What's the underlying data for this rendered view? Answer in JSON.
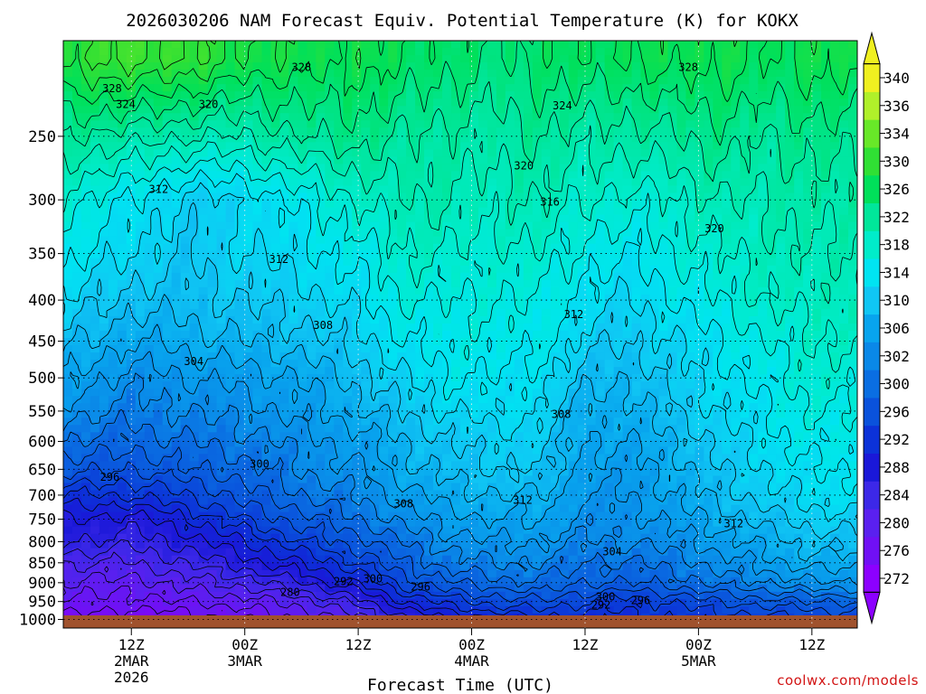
{
  "chart_data": {
    "type": "heatmap",
    "title": "2026030206 NAM Forecast Equiv. Potential Temperature (K) for KOKX",
    "xlabel": "Forecast Time (UTC)",
    "ylabel": "",
    "y_scale": "log-pressure",
    "y_unit": "hPa",
    "ylim": [
      1025,
      190
    ],
    "y_ticks": [
      250,
      300,
      350,
      400,
      450,
      500,
      550,
      600,
      650,
      700,
      750,
      800,
      850,
      900,
      950,
      1000
    ],
    "x_range_hours": [
      6,
      76
    ],
    "x_ticks": [
      {
        "hour": 12,
        "lines": [
          "12Z",
          "2MAR",
          "2026"
        ]
      },
      {
        "hour": 22,
        "lines": [
          "00Z",
          "3MAR"
        ]
      },
      {
        "hour": 32,
        "lines": [
          "12Z"
        ]
      },
      {
        "hour": 42,
        "lines": [
          "00Z",
          "4MAR"
        ]
      },
      {
        "hour": 52,
        "lines": [
          "12Z"
        ]
      },
      {
        "hour": 62,
        "lines": [
          "00Z",
          "5MAR"
        ]
      },
      {
        "hour": 72,
        "lines": [
          "12Z"
        ]
      }
    ],
    "grid": true,
    "colorbar": {
      "labels": [
        272,
        276,
        280,
        284,
        288,
        292,
        296,
        300,
        302,
        306,
        310,
        314,
        318,
        322,
        326,
        330,
        334,
        336,
        340
      ],
      "colors": [
        "#8c00ff",
        "#7010f5",
        "#5a20ef",
        "#3c28e8",
        "#1a18d8",
        "#0c32d8",
        "#0a52dc",
        "#0a6ee2",
        "#0a88e8",
        "#08a4ee",
        "#10c6f4",
        "#00e4f2",
        "#00ecca",
        "#00e69a",
        "#00e05a",
        "#30e034",
        "#68e828",
        "#b0f02a",
        "#f0f020"
      ]
    },
    "field_anchors": {
      "columns_hours": [
        6,
        12,
        17,
        22,
        27,
        32,
        36,
        40,
        44,
        48,
        52,
        56,
        60,
        64,
        68,
        72,
        76
      ],
      "rows_hPa": [
        200,
        250,
        300,
        350,
        400,
        450,
        500,
        550,
        600,
        650,
        700,
        750,
        800,
        850,
        900,
        950,
        1000
      ],
      "values_K": [
        [
          329,
          331,
          330,
          328,
          327,
          327,
          326,
          325,
          324,
          325,
          326,
          326,
          327,
          327,
          326,
          327,
          327
        ],
        [
          322,
          321,
          320,
          320,
          322,
          323,
          322,
          321,
          321,
          322,
          321,
          321,
          322,
          323,
          322,
          323,
          323
        ],
        [
          317,
          314,
          311,
          312,
          315,
          318,
          320,
          320,
          319,
          320,
          318,
          317,
          318,
          320,
          320,
          321,
          321
        ],
        [
          315,
          312,
          310,
          312,
          313,
          315,
          318,
          318,
          317,
          318,
          315,
          314,
          316,
          318,
          319,
          320,
          320
        ],
        [
          312,
          309,
          309,
          310,
          311,
          313,
          316,
          316,
          316,
          316,
          313,
          312,
          314,
          316,
          318,
          319,
          319
        ],
        [
          309,
          306,
          307,
          308,
          309,
          311,
          314,
          315,
          315,
          315,
          311,
          310,
          312,
          314,
          316,
          318,
          318
        ],
        [
          306,
          303,
          304,
          305,
          306,
          309,
          312,
          314,
          314,
          313,
          309,
          308,
          311,
          313,
          315,
          317,
          317
        ],
        [
          303,
          301,
          302,
          303,
          305,
          307,
          310,
          312,
          313,
          312,
          307,
          307,
          310,
          312,
          314,
          316,
          316
        ],
        [
          300,
          299,
          300,
          301,
          303,
          305,
          308,
          310,
          311,
          311,
          306,
          306,
          308,
          311,
          313,
          315,
          315
        ],
        [
          297,
          296,
          298,
          299,
          302,
          304,
          307,
          309,
          310,
          310,
          305,
          305,
          307,
          310,
          312,
          314,
          314
        ],
        [
          292,
          292,
          294,
          297,
          300,
          302,
          305,
          307,
          308,
          308,
          304,
          304,
          306,
          309,
          311,
          313,
          313
        ],
        [
          288,
          287,
          290,
          294,
          297,
          300,
          303,
          305,
          306,
          306,
          303,
          303,
          305,
          307,
          309,
          311,
          311
        ],
        [
          286,
          285,
          287,
          290,
          294,
          297,
          300,
          303,
          304,
          304,
          302,
          302,
          303,
          305,
          307,
          309,
          309
        ],
        [
          282,
          282,
          284,
          287,
          290,
          294,
          298,
          301,
          302,
          302,
          300,
          300,
          301,
          303,
          305,
          307,
          307
        ],
        [
          280,
          279,
          281,
          283,
          286,
          290,
          295,
          298,
          299,
          300,
          298,
          298,
          299,
          301,
          302,
          304,
          304
        ],
        [
          278,
          277,
          278,
          279,
          281,
          285,
          290,
          293,
          295,
          296,
          294,
          293,
          294,
          296,
          297,
          298,
          298
        ],
        [
          275,
          274,
          275,
          276,
          278,
          281,
          285,
          288,
          290,
          291,
          291,
          291,
          292,
          293,
          293,
          294,
          294
        ]
      ]
    },
    "contour_labels": [
      {
        "t": "328",
        "h": 10.3,
        "p": 218
      },
      {
        "t": "324",
        "h": 11.5,
        "p": 228
      },
      {
        "t": "320",
        "h": 18.8,
        "p": 228
      },
      {
        "t": "328",
        "h": 27.0,
        "p": 205
      },
      {
        "t": "328",
        "h": 61.1,
        "p": 205
      },
      {
        "t": "324",
        "h": 50.0,
        "p": 229
      },
      {
        "t": "320",
        "h": 46.6,
        "p": 272
      },
      {
        "t": "316",
        "h": 48.9,
        "p": 302
      },
      {
        "t": "320",
        "h": 63.4,
        "p": 326
      },
      {
        "t": "312",
        "h": 14.4,
        "p": 291
      },
      {
        "t": "312",
        "h": 25.0,
        "p": 356
      },
      {
        "t": "308",
        "h": 28.9,
        "p": 430
      },
      {
        "t": "312",
        "h": 51.0,
        "p": 417
      },
      {
        "t": "304",
        "h": 17.5,
        "p": 477
      },
      {
        "t": "308",
        "h": 49.9,
        "p": 555
      },
      {
        "t": "300",
        "h": 23.3,
        "p": 640
      },
      {
        "t": "296",
        "h": 10.1,
        "p": 665
      },
      {
        "t": "308",
        "h": 36.0,
        "p": 718
      },
      {
        "t": "312",
        "h": 46.5,
        "p": 710
      },
      {
        "t": "312",
        "h": 65.1,
        "p": 760
      },
      {
        "t": "304",
        "h": 54.4,
        "p": 823
      },
      {
        "t": "300",
        "h": 33.3,
        "p": 890
      },
      {
        "t": "292",
        "h": 30.7,
        "p": 897
      },
      {
        "t": "296",
        "h": 37.5,
        "p": 911
      },
      {
        "t": "280",
        "h": 26.0,
        "p": 925
      },
      {
        "t": "300",
        "h": 53.8,
        "p": 937
      },
      {
        "t": "296",
        "h": 56.9,
        "p": 947
      },
      {
        "t": "292",
        "h": 53.4,
        "p": 960
      }
    ]
  },
  "credit": "coolwx.com/models"
}
